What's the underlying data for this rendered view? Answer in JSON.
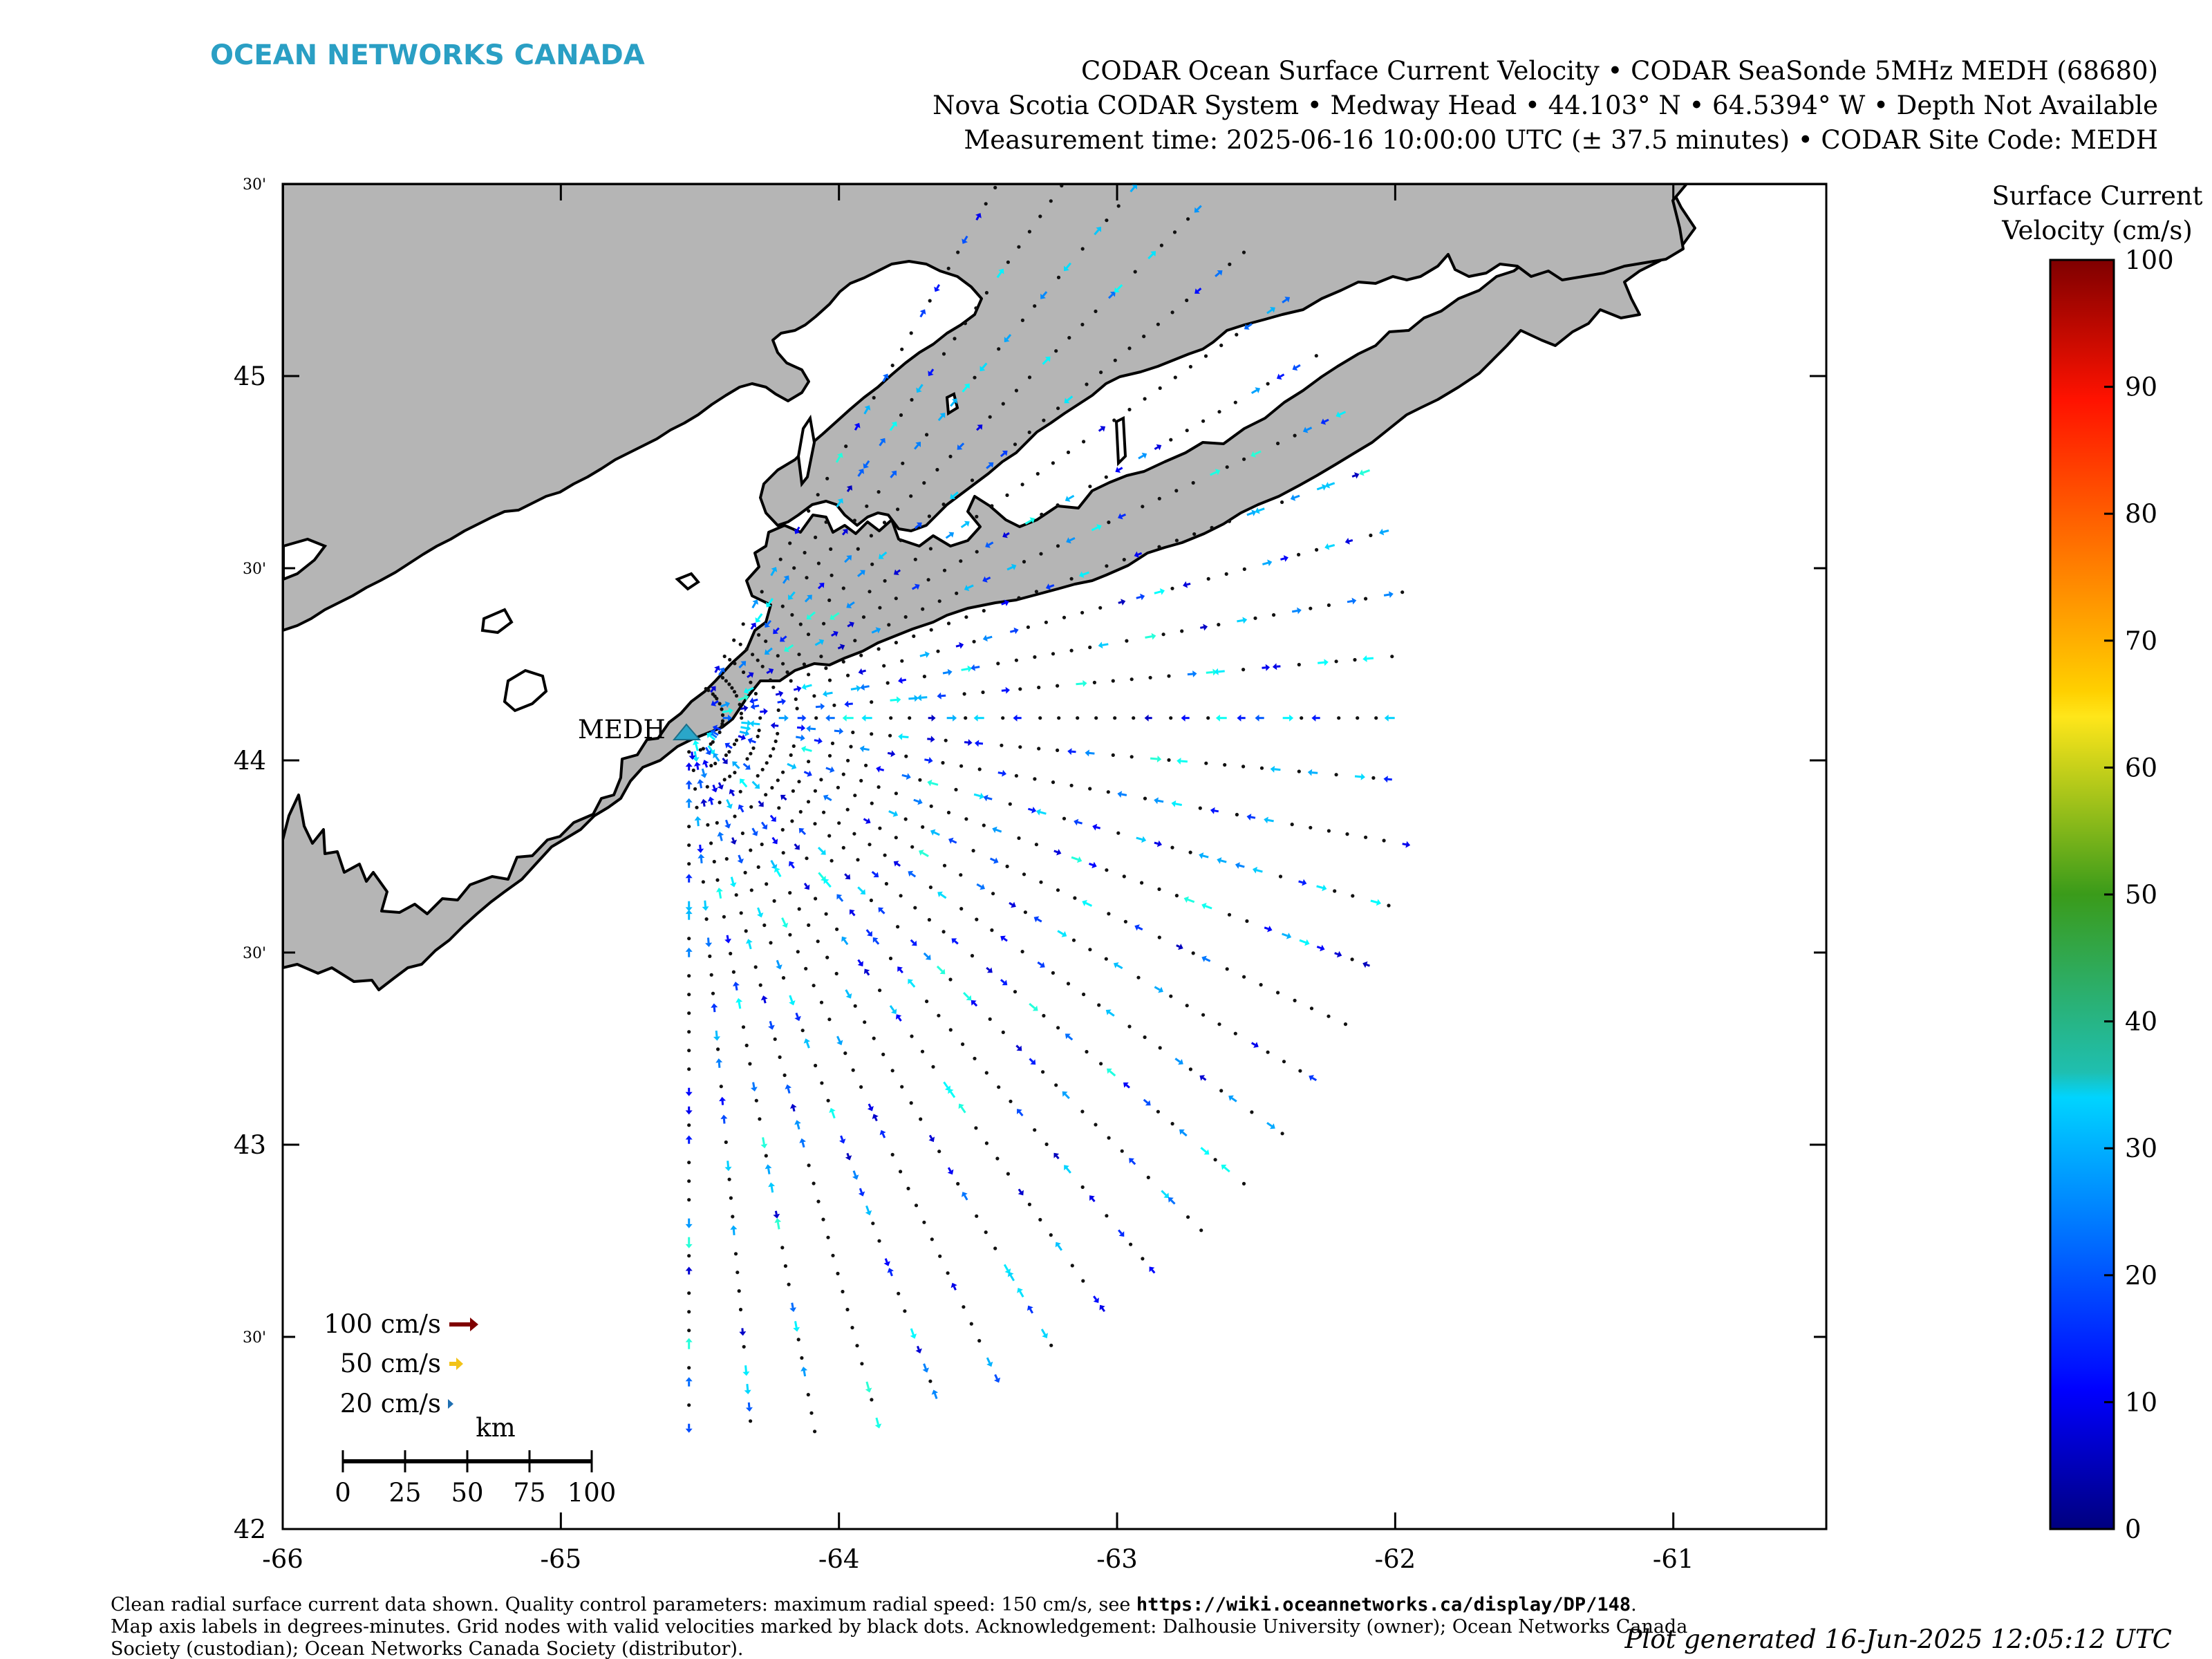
{
  "brand": {
    "name": "OCEAN NETWORKS CANADA",
    "color": "#2a9fc4"
  },
  "header": {
    "line1": "CODAR Ocean Surface Current Velocity • CODAR SeaSonde 5MHz MEDH (68680)",
    "line2": "Nova Scotia CODAR System • Medway Head • 44.103° N • 64.5394° W • Depth Not Available",
    "line3": "Measurement time: 2025-06-16 10:00:00 UTC (± 37.5 minutes) • CODAR Site Code: MEDH"
  },
  "map": {
    "lon_range": [
      -66,
      -60.45
    ],
    "lat_range": [
      42,
      45.5
    ],
    "x_ticks": [
      "-66",
      "-65",
      "-64",
      "-63",
      "-62",
      "-61"
    ],
    "y_ticks_major": [
      "42",
      "43",
      "44",
      "45"
    ],
    "y_ticks_minor": [
      "30'",
      "30'",
      "30'",
      "30'"
    ],
    "land_color": "#b5b5b5",
    "site": {
      "code": "MEDH",
      "lon": -64.5394,
      "lat": 44.103,
      "marker_color": "#2aa6c9"
    }
  },
  "legend": {
    "ref_arrows": [
      {
        "label": "100 cm/s",
        "speed": 100,
        "color": "#7f0000"
      },
      {
        "label": "50 cm/s",
        "speed": 50,
        "color": "#f2c318"
      },
      {
        "label": "20 cm/s",
        "speed": 20,
        "color": "#1f6fb2"
      }
    ],
    "scale_title": "km",
    "scale_labels": [
      "0",
      "25",
      "50",
      "75",
      "100"
    ]
  },
  "colorbar": {
    "title_line1": "Surface Current",
    "title_line2": "Velocity (cm/s)",
    "ticks": [
      "0",
      "10",
      "20",
      "30",
      "40",
      "50",
      "60",
      "70",
      "80",
      "90",
      "100"
    ],
    "range": [
      0,
      100
    ],
    "colormap": "jet"
  },
  "footer": {
    "line1_text": "Clean radial surface current data shown. Quality control parameters: maximum radial speed: 150 cm/s, see ",
    "line1_link": "https://wiki.oceannetworks.ca/display/DP/148",
    "line1_end": ".",
    "line2": "Map axis labels in degrees-minutes. Grid nodes with valid velocities marked by black dots. Acknowledgement: Dalhousie University (owner); Ocean Networks Canada",
    "line3": "Society (custodian); Ocean Networks Canada Society (distributor).",
    "generated": "Plot generated 16-Jun-2025 12:05:12 UTC"
  },
  "radial_grid": {
    "bearing_start_deg": 30,
    "bearing_end_deg": 180,
    "bearing_step_deg": 5,
    "ring_count": 38
  }
}
